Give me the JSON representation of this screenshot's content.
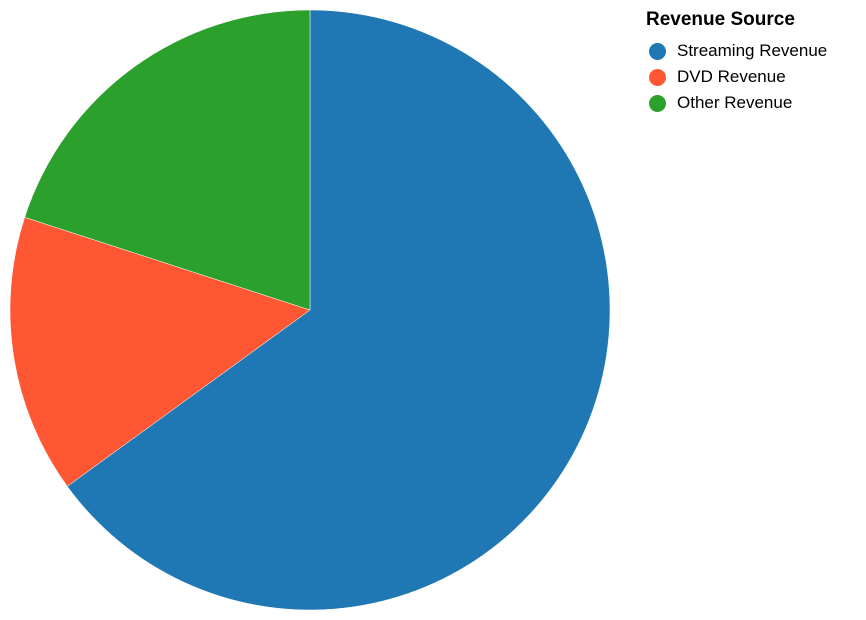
{
  "chart_data": {
    "type": "pie",
    "categories": [
      "Streaming Revenue",
      "DVD Revenue",
      "Other Revenue"
    ],
    "values": [
      65,
      15,
      20
    ],
    "colors": [
      "#1f77b4",
      "#ff5733",
      "#2ca02c"
    ],
    "start_angle_deg": 0,
    "direction": "clockwise",
    "legend": {
      "title": "Revenue Source",
      "position": "top-right"
    }
  }
}
